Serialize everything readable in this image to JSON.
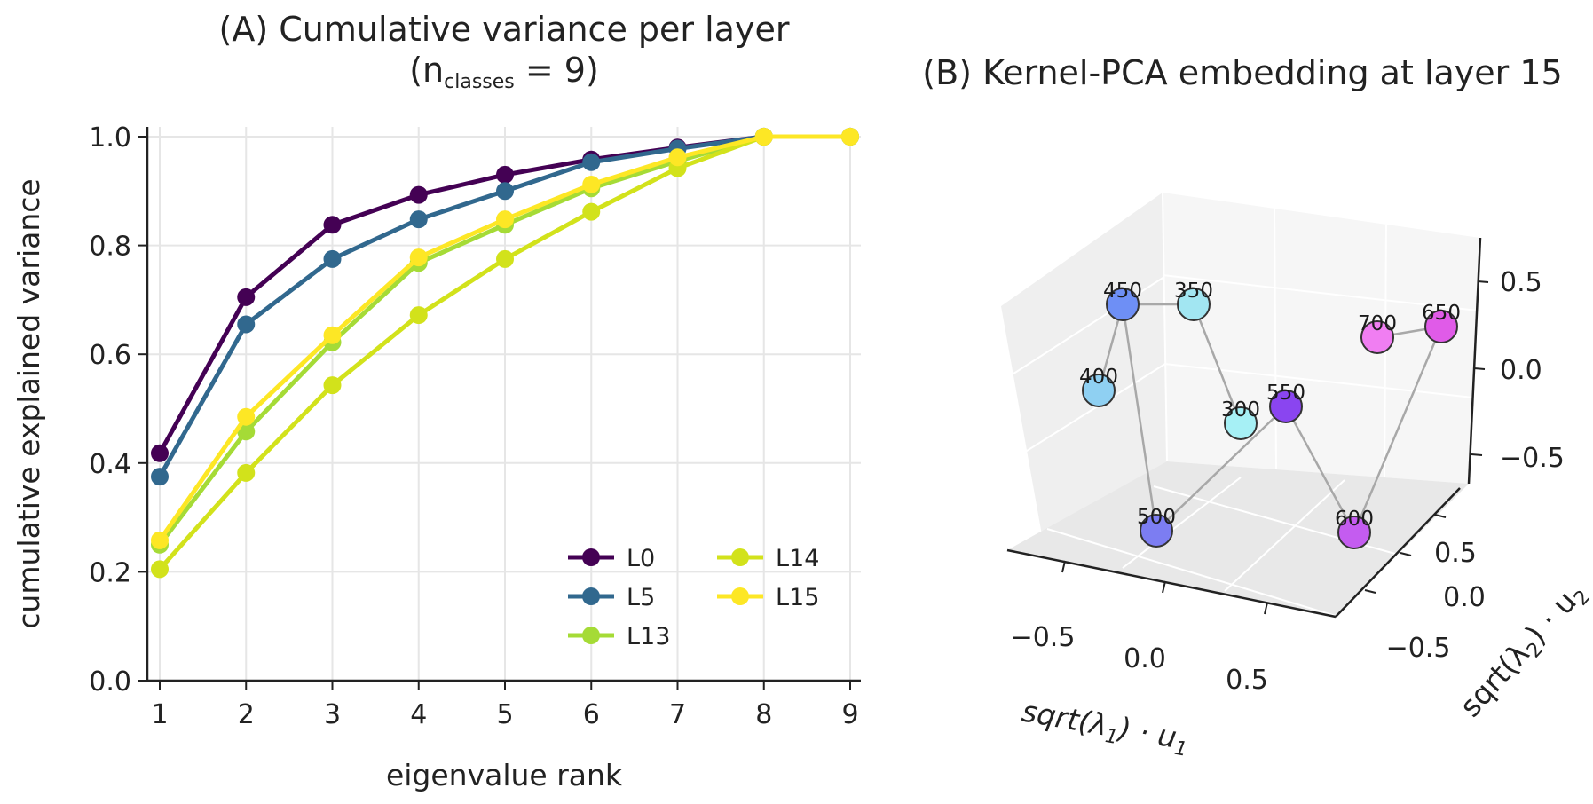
{
  "chart_data": [
    {
      "type": "line",
      "title_main": "(A) Cumulative variance per layer",
      "title_line2": {
        "open": "(n",
        "sub": "classes",
        "rest": " = 9)"
      },
      "xlabel": "eigenvalue rank",
      "ylabel": "cumulative explained variance",
      "x": [
        1,
        2,
        3,
        4,
        5,
        6,
        7,
        8,
        9
      ],
      "xticks": [
        "1",
        "2",
        "3",
        "4",
        "5",
        "6",
        "7",
        "8",
        "9"
      ],
      "yticks": [
        "0.0",
        "0.2",
        "0.4",
        "0.6",
        "0.8",
        "1.0"
      ],
      "ylim": [
        0,
        1
      ],
      "grid": true,
      "legend_position": "bottom-right",
      "series": [
        {
          "name": "L0",
          "color": "#440154",
          "values": [
            0.418,
            0.705,
            0.838,
            0.893,
            0.93,
            0.958,
            0.98,
            1.0,
            1.0
          ]
        },
        {
          "name": "L5",
          "color": "#31688e",
          "values": [
            0.375,
            0.655,
            0.775,
            0.848,
            0.9,
            0.953,
            0.978,
            1.0,
            1.0
          ]
        },
        {
          "name": "L13",
          "color": "#a5db36",
          "values": [
            0.25,
            0.458,
            0.622,
            0.768,
            0.838,
            0.905,
            0.955,
            1.0,
            1.0
          ]
        },
        {
          "name": "L14",
          "color": "#d2e21b",
          "values": [
            0.205,
            0.382,
            0.543,
            0.672,
            0.775,
            0.862,
            0.942,
            1.0,
            1.0
          ]
        },
        {
          "name": "L15",
          "color": "#fde725",
          "values": [
            0.258,
            0.485,
            0.635,
            0.778,
            0.848,
            0.912,
            0.962,
            1.0,
            1.0
          ]
        }
      ]
    },
    {
      "type": "scatter",
      "title": "(B) Kernel-PCA embedding at layer 15",
      "xlabel": {
        "pre": "sqrt(λ",
        "sub": "1",
        "post": ") · u",
        "sub2": "1"
      },
      "ylabel": {
        "pre": "sqrt(λ",
        "sub": "2",
        "post": ") · u",
        "sub2": "2"
      },
      "x_ticks": [
        "−0.5",
        "0.0",
        "0.5"
      ],
      "y_ticks": [
        "0.5",
        "0.0",
        "−0.5"
      ],
      "z_ticks": [
        "0.5",
        "0.0",
        "−0.5"
      ],
      "points": [
        {
          "label": "300",
          "color": "#a6f0f5"
        },
        {
          "label": "350",
          "color": "#a2e6f2"
        },
        {
          "label": "400",
          "color": "#8fd0f2"
        },
        {
          "label": "450",
          "color": "#6e8ff5"
        },
        {
          "label": "500",
          "color": "#7c7df2"
        },
        {
          "label": "550",
          "color": "#8a45f0"
        },
        {
          "label": "600",
          "color": "#c45cf0"
        },
        {
          "label": "650",
          "color": "#e05be8"
        },
        {
          "label": "700",
          "color": "#f07ef2"
        }
      ],
      "path_order": [
        "400",
        "450",
        "500",
        "550",
        "600",
        "650",
        "700"
      ],
      "path_order_2": [
        "450",
        "350",
        "300"
      ]
    }
  ]
}
